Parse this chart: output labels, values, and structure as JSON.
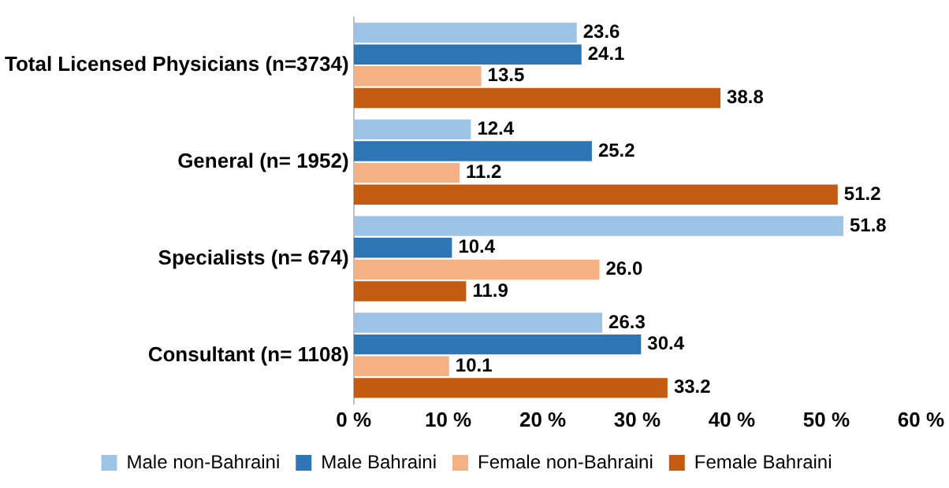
{
  "chart_data": {
    "type": "bar",
    "orientation": "horizontal",
    "categories": [
      "Total Licensed Physicians (n=3734)",
      "General (n= 1952)",
      "Specialists (n= 674)",
      "Consultant (n= 1108)"
    ],
    "series": [
      {
        "name": "Male non-Bahraini",
        "color": "#9dc3e6",
        "values": [
          23.6,
          12.4,
          51.8,
          26.3
        ]
      },
      {
        "name": "Male Bahraini",
        "color": "#2e75b6",
        "values": [
          24.1,
          25.2,
          10.4,
          30.4
        ]
      },
      {
        "name": "Female non-Bahraini",
        "color": "#f4b183",
        "values": [
          13.5,
          11.2,
          26.0,
          10.1
        ]
      },
      {
        "name": "Female Bahraini",
        "color": "#c55a11",
        "values": [
          38.8,
          51.2,
          11.9,
          33.2
        ]
      }
    ],
    "value_labels": [
      [
        "23.6",
        "12.4",
        "51.8",
        "26.3"
      ],
      [
        "24.1",
        "25.2",
        "10.4",
        "30.4"
      ],
      [
        "13.5",
        "11.2",
        "26.0",
        "10.1"
      ],
      [
        "38.8",
        "51.2",
        "11.9",
        "33.2"
      ]
    ],
    "xlim": [
      0,
      60
    ],
    "xticks": [
      {
        "value": 0,
        "label": "0 %"
      },
      {
        "value": 10,
        "label": "10 %"
      },
      {
        "value": 20,
        "label": "20 %"
      },
      {
        "value": 30,
        "label": "30 %"
      },
      {
        "value": 40,
        "label": "40 %"
      },
      {
        "value": 50,
        "label": "50 %"
      },
      {
        "value": 60,
        "label": "60 %"
      }
    ],
    "grid": false,
    "legend": "bottom"
  }
}
